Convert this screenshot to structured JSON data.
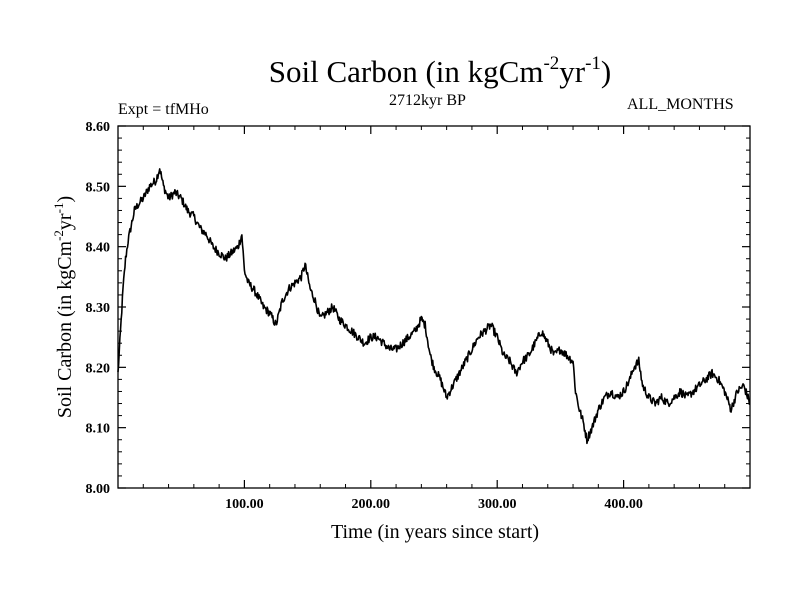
{
  "chart_data": {
    "type": "line",
    "title_main": "Soil Carbon (in kgCm",
    "title_exp1": "-2",
    "title_mid": "yr",
    "title_exp2": "-1",
    "title_close": ")",
    "subtitle_left": "Expt = tfMHo",
    "subtitle_center": "2712kyr BP",
    "subtitle_right": "ALL_MONTHS",
    "xlabel": "Time (in years since start)",
    "ylabel_main": "Soil Carbon (in kgCm",
    "ylabel_exp1": "-2",
    "ylabel_mid": "yr",
    "ylabel_exp2": "-1",
    "ylabel_close": ")",
    "xlim": [
      0,
      500
    ],
    "ylim": [
      8.0,
      8.6
    ],
    "xticks": [
      100,
      200,
      300,
      400
    ],
    "xtick_labels": [
      "100.00",
      "200.00",
      "300.00",
      "400.00"
    ],
    "yticks": [
      8.0,
      8.1,
      8.2,
      8.3,
      8.4,
      8.5,
      8.6
    ],
    "ytick_labels": [
      "8.00",
      "8.10",
      "8.20",
      "8.30",
      "8.40",
      "8.50",
      "8.60"
    ],
    "series": [
      {
        "name": "Soil Carbon",
        "color": "#000000",
        "x": [
          0,
          2,
          4,
          6,
          8,
          10,
          13,
          16,
          20,
          25,
          30,
          33,
          36,
          40,
          45,
          50,
          55,
          60,
          65,
          70,
          75,
          80,
          85,
          90,
          95,
          98,
          100,
          103,
          107,
          110,
          115,
          120,
          125,
          130,
          135,
          140,
          145,
          148,
          152,
          156,
          160,
          165,
          170,
          175,
          180,
          185,
          190,
          195,
          200,
          205,
          210,
          215,
          220,
          225,
          230,
          235,
          240,
          243,
          247,
          250,
          255,
          260,
          265,
          270,
          275,
          280,
          285,
          290,
          295,
          300,
          305,
          310,
          315,
          320,
          325,
          330,
          335,
          340,
          345,
          350,
          355,
          360,
          362,
          365,
          368,
          371,
          375,
          380,
          385,
          390,
          395,
          400,
          405,
          408,
          412,
          415,
          420,
          425,
          430,
          435,
          440,
          445,
          450,
          455,
          460,
          465,
          470,
          475,
          480,
          485,
          490,
          495,
          500
        ],
        "values": [
          8.19,
          8.26,
          8.33,
          8.38,
          8.41,
          8.43,
          8.46,
          8.47,
          8.48,
          8.5,
          8.51,
          8.53,
          8.5,
          8.48,
          8.49,
          8.48,
          8.46,
          8.45,
          8.43,
          8.42,
          8.4,
          8.39,
          8.38,
          8.39,
          8.4,
          8.42,
          8.36,
          8.34,
          8.33,
          8.32,
          8.3,
          8.29,
          8.27,
          8.31,
          8.33,
          8.34,
          8.35,
          8.37,
          8.33,
          8.31,
          8.28,
          8.29,
          8.3,
          8.28,
          8.27,
          8.26,
          8.25,
          8.24,
          8.25,
          8.25,
          8.24,
          8.23,
          8.23,
          8.24,
          8.25,
          8.26,
          8.28,
          8.27,
          8.22,
          8.2,
          8.18,
          8.15,
          8.17,
          8.19,
          8.21,
          8.23,
          8.25,
          8.26,
          8.27,
          8.25,
          8.22,
          8.21,
          8.19,
          8.21,
          8.22,
          8.24,
          8.26,
          8.24,
          8.22,
          8.23,
          8.22,
          8.21,
          8.16,
          8.13,
          8.11,
          8.08,
          8.1,
          8.13,
          8.15,
          8.16,
          8.15,
          8.16,
          8.18,
          8.2,
          8.21,
          8.17,
          8.15,
          8.14,
          8.15,
          8.14,
          8.15,
          8.16,
          8.15,
          8.16,
          8.17,
          8.18,
          8.19,
          8.18,
          8.16,
          8.13,
          8.16,
          8.17,
          8.14
        ]
      }
    ]
  }
}
